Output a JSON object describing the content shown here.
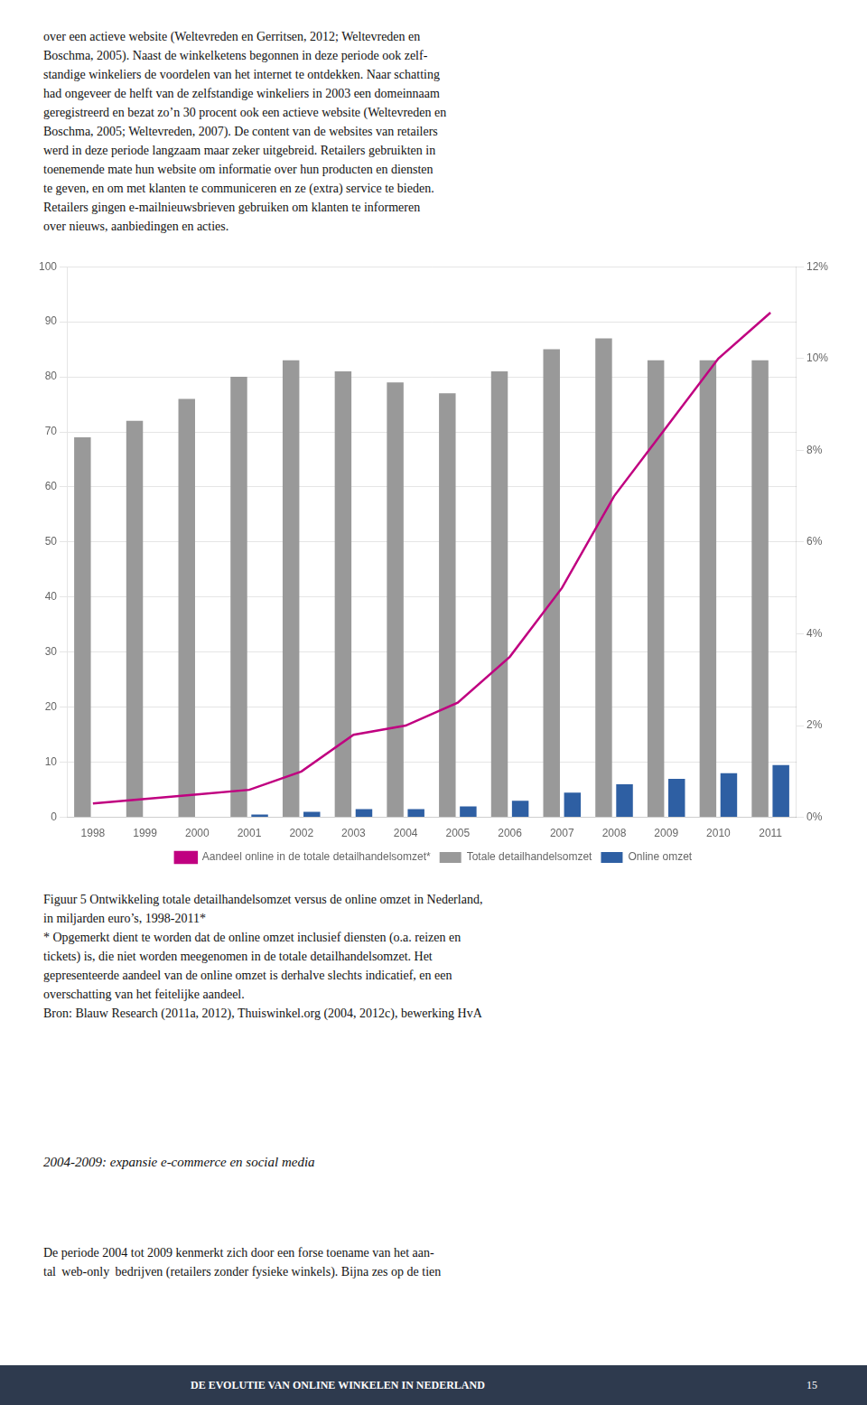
{
  "chart_data": {
    "type": "bar",
    "categories": [
      1998,
      1999,
      2000,
      2001,
      2002,
      2003,
      2004,
      2005,
      2006,
      2007,
      2008,
      2009,
      2010,
      2011
    ],
    "series": [
      {
        "name": "Totale detailhandelsomzet",
        "type": "bar",
        "color": "#999999",
        "values": [
          69,
          72,
          76,
          80,
          83,
          81,
          79,
          77,
          81,
          85,
          87,
          83,
          83,
          83
        ]
      },
      {
        "name": "Online omzet",
        "type": "bar",
        "color": "#2e5fa3",
        "values": [
          0,
          0,
          0,
          0.5,
          1.0,
          1.5,
          1.5,
          2.0,
          3.0,
          4.5,
          6.0,
          7.0,
          8.0,
          9.5
        ]
      },
      {
        "name": "Aandeel online in de totale detailhandelsomzet*",
        "type": "line",
        "color": "#c00080",
        "axis": "y2",
        "values": [
          0.3,
          0.4,
          0.5,
          0.6,
          1.0,
          1.8,
          2.0,
          2.5,
          3.5,
          5.0,
          7.0,
          8.5,
          10.0,
          11.0
        ]
      }
    ],
    "ylim": [
      0,
      100
    ],
    "yticks": [
      0,
      10,
      20,
      30,
      40,
      50,
      60,
      70,
      80,
      90,
      100
    ],
    "y2lim": [
      0,
      12
    ],
    "y2ticks": [
      {
        "value": 0,
        "label": "0%"
      },
      {
        "value": 2,
        "label": "2%"
      },
      {
        "value": 4,
        "label": "4%"
      },
      {
        "value": 6,
        "label": "6%"
      },
      {
        "value": 8,
        "label": "8%"
      },
      {
        "value": 10,
        "label": "10%"
      },
      {
        "value": 12,
        "label": "12%"
      }
    ],
    "grid": true,
    "legend": "bottom",
    "annotations": [
      "over een actieve website (Weltevreden en Gerritsen, 2012; Weltevreden en\nBoschma, 2005). Naast de winkelketens begonnen in deze periode ook zelf-\nstandige winkeliers de voordelen van het internet te ontdekken. Naar schatting\nhad ongeveer de helft van de zelfstandige winkeliers in 2003 een domeinnaam\ngeregistreerd en bezat zo’n 30 procent ook een actieve website (Weltevreden en\nBoschma, 2005; Weltevreden, 2007). De content van de websites van retailers\nwerd in deze periode langzaam maar zeker uitgebreid. Retailers gebruikten in\ntoenemende mate hun website om informatie over hun producten en diensten\nte geven, en om met klanten te communiceren en ze (extra) service te bieden.\nRetailers gingen e-mailnieuwsbrieven gebruiken om klanten te informeren\nover nieuws, aanbiedingen en acties.",
      "Figuur 5 Ontwikkeling totale detailhandelsomzet versus de online omzet in Nederland,\nin miljarden euro’s, 1998-2011*\n* Opgemerkt dient te worden dat de online omzet inclusief diensten (o.a. reizen en\ntickets) is, die niet worden meegenomen in de totale detailhandelsomzet. Het\ngepresenteerde aandeel van de online omzet is derhalve slechts indicatief, en een\noverschatting van het feitelijke aandeel.\nBron: Blauw Research (2011a, 2012), Thuiswinkel.org (2004, 2012c), bewerking HvA",
      "2004-2009: expansie e-commerce en social media",
      "De periode 2004 tot 2009 kenmerkt zich door een forse toename van het aan-\ntal  web-only  bedrijven (retailers zonder fysieke winkels). Bijna zes op de tien",
      "DE EVOLUTIE VAN ONLINE WINKELEN IN NEDERLAND",
      "15"
    ]
  }
}
